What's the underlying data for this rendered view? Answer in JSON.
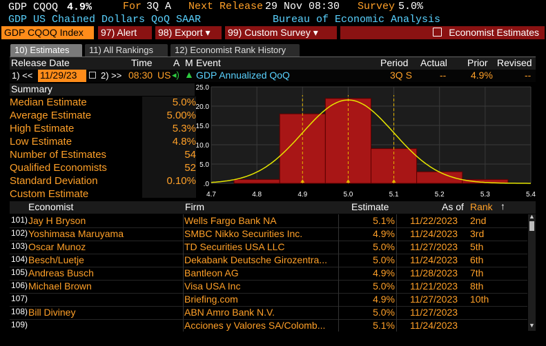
{
  "header": {
    "ticker": "GDP CQOQ",
    "value": "4.9%",
    "for_label": "For",
    "for_value": "3Q A",
    "next_release_label": "Next Release",
    "next_release_value": "29 Nov 08:30",
    "survey_label": "Survey",
    "survey_value": "5.0%",
    "description": "GDP US Chained Dollars QoQ SAAR",
    "source": "Bureau of Economic Analysis"
  },
  "menu": {
    "security": "GDP CQOQ Index",
    "alert": "97) Alert",
    "export": "98) Export ▾",
    "custom_survey": "99) Custom Survey ▾",
    "economist_estimates": "Economist Estimates"
  },
  "tabs": [
    "10) Estimates",
    "11) All Rankings",
    "12) Economist Rank History"
  ],
  "release_table": {
    "headers": {
      "release_date": "Release Date",
      "time": "Time",
      "a": "A",
      "m": "M",
      "event": "Event",
      "period": "Period",
      "actual": "Actual",
      "prior": "Prior",
      "revised": "Revised"
    },
    "prev_btn": "1) <<",
    "date": "11/29/23",
    "next_btn": "2) >>",
    "time": "08:30",
    "country": "US",
    "event": "GDP Annualized QoQ",
    "period": "3Q S",
    "actual": "--",
    "prior": "4.9%",
    "revised": "--"
  },
  "summary": {
    "title": "Summary",
    "items": [
      {
        "label": "Median Estimate",
        "value": "5.0%"
      },
      {
        "label": "Average Estimate",
        "value": "5.00%"
      },
      {
        "label": "High Estimate",
        "value": "5.3%"
      },
      {
        "label": "Low Estimate",
        "value": "4.8%"
      },
      {
        "label": "Number of Estimates",
        "value": "54"
      },
      {
        "label": "Qualified Economists",
        "value": "52"
      },
      {
        "label": "Standard Deviation",
        "value": "0.10%"
      },
      {
        "label": "Custom Estimate",
        "value": ""
      }
    ]
  },
  "chart_data": {
    "type": "bar",
    "categories": [
      "4.8",
      "4.9",
      "5.0",
      "5.1",
      "5.2",
      "5.3"
    ],
    "x_ticks": [
      "4.7",
      "4.8",
      "4.9",
      "5.0",
      "5.1",
      "5.2",
      "5.3",
      "5.4"
    ],
    "y_ticks": [
      "25.0",
      "20.0",
      "15.0",
      "10.0",
      "5.0",
      ".0"
    ],
    "ylim": [
      0,
      25
    ],
    "xlim": [
      4.7,
      5.4
    ],
    "bins": [
      {
        "x0": 4.75,
        "x1": 4.85,
        "value": 1
      },
      {
        "x0": 4.85,
        "x1": 4.95,
        "value": 18
      },
      {
        "x0": 4.95,
        "x1": 5.05,
        "value": 22
      },
      {
        "x0": 5.05,
        "x1": 5.15,
        "value": 9
      },
      {
        "x0": 5.15,
        "x1": 5.25,
        "value": 3
      },
      {
        "x0": 5.25,
        "x1": 5.35,
        "value": 1
      }
    ],
    "curve": {
      "mean": 5.0,
      "stdev": 0.1,
      "peak": 21.6
    },
    "markers": [
      4.9,
      5.0,
      5.1
    ],
    "grid": true
  },
  "economists": {
    "headers": {
      "economist": "Economist",
      "firm": "Firm",
      "estimate": "Estimate",
      "as_of": "As of",
      "rank": "Rank"
    },
    "rows": [
      {
        "num": "101)",
        "name": "Jay H Bryson",
        "firm": "Wells Fargo Bank NA",
        "estimate": "5.1%",
        "as_of": "11/22/2023",
        "rank": "2nd"
      },
      {
        "num": "102)",
        "name": "Yoshimasa Maruyama",
        "firm": "SMBC Nikko Securities Inc.",
        "estimate": "4.9%",
        "as_of": "11/24/2023",
        "rank": "3rd"
      },
      {
        "num": "103)",
        "name": "Oscar Munoz",
        "firm": "TD Securities USA LLC",
        "estimate": "5.0%",
        "as_of": "11/27/2023",
        "rank": "5th"
      },
      {
        "num": "104)",
        "name": "Besch/Luetje",
        "firm": "Dekabank Deutsche Girozentra...",
        "estimate": "5.0%",
        "as_of": "11/24/2023",
        "rank": "6th"
      },
      {
        "num": "105)",
        "name": "Andreas Busch",
        "firm": "Bantleon AG",
        "estimate": "4.9%",
        "as_of": "11/28/2023",
        "rank": "7th"
      },
      {
        "num": "106)",
        "name": "Michael Brown",
        "firm": "Visa USA Inc",
        "estimate": "5.0%",
        "as_of": "11/21/2023",
        "rank": "8th"
      },
      {
        "num": "107)",
        "name": "",
        "firm": "Briefing.com",
        "estimate": "4.9%",
        "as_of": "11/27/2023",
        "rank": "10th"
      },
      {
        "num": "108)",
        "name": "Bill Diviney",
        "firm": "ABN Amro Bank N.V.",
        "estimate": "5.0%",
        "as_of": "11/27/2023",
        "rank": ""
      },
      {
        "num": "109)",
        "name": "",
        "firm": "Acciones y Valores SA/Colomb...",
        "estimate": "5.1%",
        "as_of": "11/24/2023",
        "rank": ""
      }
    ]
  },
  "colors": {
    "amber": "#ffa028",
    "menu_red": "#8a1212",
    "bar_red": "#b01a1a",
    "curve": "#e6e600",
    "link_blue": "#5ad2ff"
  }
}
